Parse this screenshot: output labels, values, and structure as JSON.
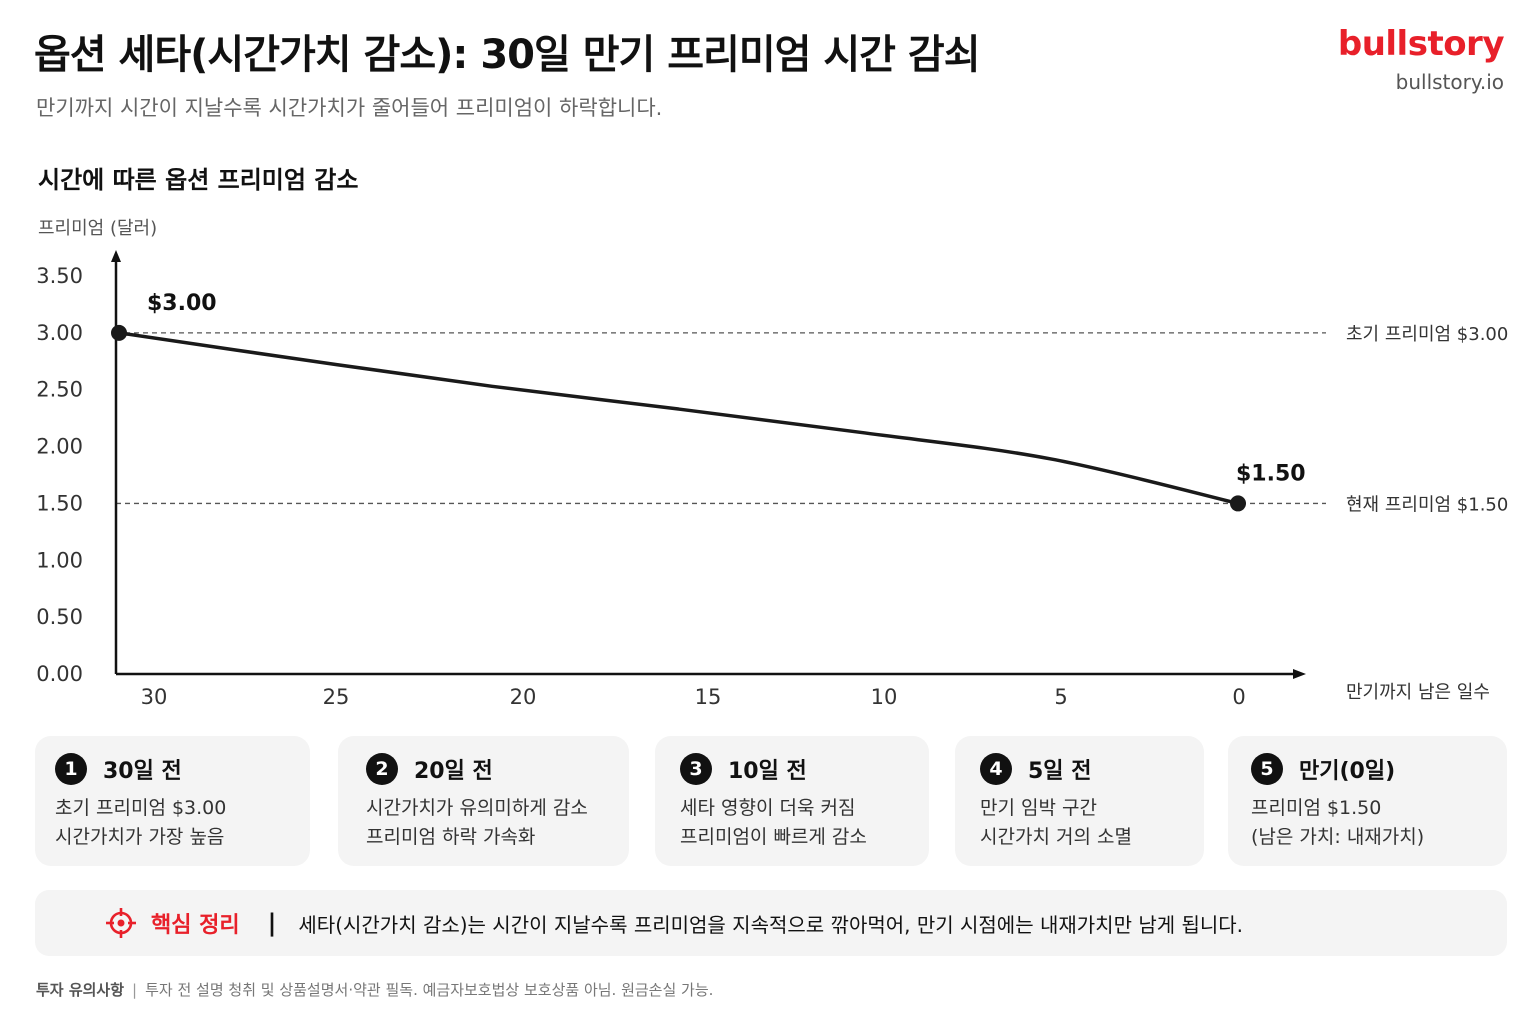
{
  "header": {
    "title": "옵션 세타(시간가치 감소): 30일 만기 프리미엄 시간 감쇠",
    "subtitle": "만기까지 시간이 지날수록 시간가치가 줄어들어 프리미엄이 하락합니다.",
    "brand_name": "bullstory",
    "brand_url": "bullstory.io"
  },
  "chart_data": {
    "type": "line",
    "title": "시간에 따른 옵션 프리미엄 감소",
    "ylabel": "프리미엄 (달러)",
    "xlabel": "만기까지 남은 일수",
    "x_ticks": [
      30,
      25,
      20,
      15,
      10,
      5,
      0
    ],
    "y_ticks": [
      "0.00",
      "0.50",
      "1.00",
      "1.50",
      "2.00",
      "2.50",
      "3.00",
      "3.50"
    ],
    "xlim": [
      30,
      0
    ],
    "ylim": [
      0,
      3.5
    ],
    "series": [
      {
        "x": [
          30,
          25,
          20,
          15,
          10,
          5,
          0
        ],
        "y": [
          3.0,
          2.76,
          2.53,
          2.33,
          2.12,
          1.89,
          1.5
        ]
      }
    ],
    "endpoints": [
      {
        "x": 30,
        "y": 3.0,
        "label": "$3.00"
      },
      {
        "x": 0,
        "y": 1.5,
        "label": "$1.50"
      }
    ],
    "reference_lines": [
      {
        "y": 3.0,
        "label": "초기 프리미엄 $3.00"
      },
      {
        "y": 1.5,
        "label": "현재 프리미엄 $1.50"
      }
    ],
    "grid": false
  },
  "cards": [
    {
      "num": "1",
      "title": "30일 전",
      "line1": "초기 프리미엄 $3.00",
      "line2": "시간가치가 가장 높음"
    },
    {
      "num": "2",
      "title": "20일 전",
      "line1": "시간가치가 유의미하게 감소",
      "line2": "프리미엄 하락 가속화"
    },
    {
      "num": "3",
      "title": "10일 전",
      "line1": "세타 영향이 더욱 커짐",
      "line2": "프리미엄이 빠르게 감소"
    },
    {
      "num": "4",
      "title": "5일 전",
      "line1": "만기 임박 구간",
      "line2": "시간가치 거의 소멸"
    },
    {
      "num": "5",
      "title": "만기(0일)",
      "line1": "프리미엄 $1.50",
      "line2": "(남은 가치: 내재가치)"
    }
  ],
  "summary": {
    "icon": "target-icon",
    "label": "핵심 정리",
    "separator": "|",
    "text": "세타(시간가치 감소)는 시간이 지날수록 프리미엄을 지속적으로 깎아먹어, 만기 시점에는 내재가치만 남게 됩니다."
  },
  "footer": {
    "label": "투자 유의사항",
    "separator": "|",
    "text": "투자 전 설명 청취 및 상품설명서·약관 필독. 예금자보호법상 보호상품 아님. 원금손실 가능."
  },
  "colors": {
    "accent": "#e8202a",
    "line": "#1a1a1a",
    "card_bg": "#f4f4f4"
  }
}
